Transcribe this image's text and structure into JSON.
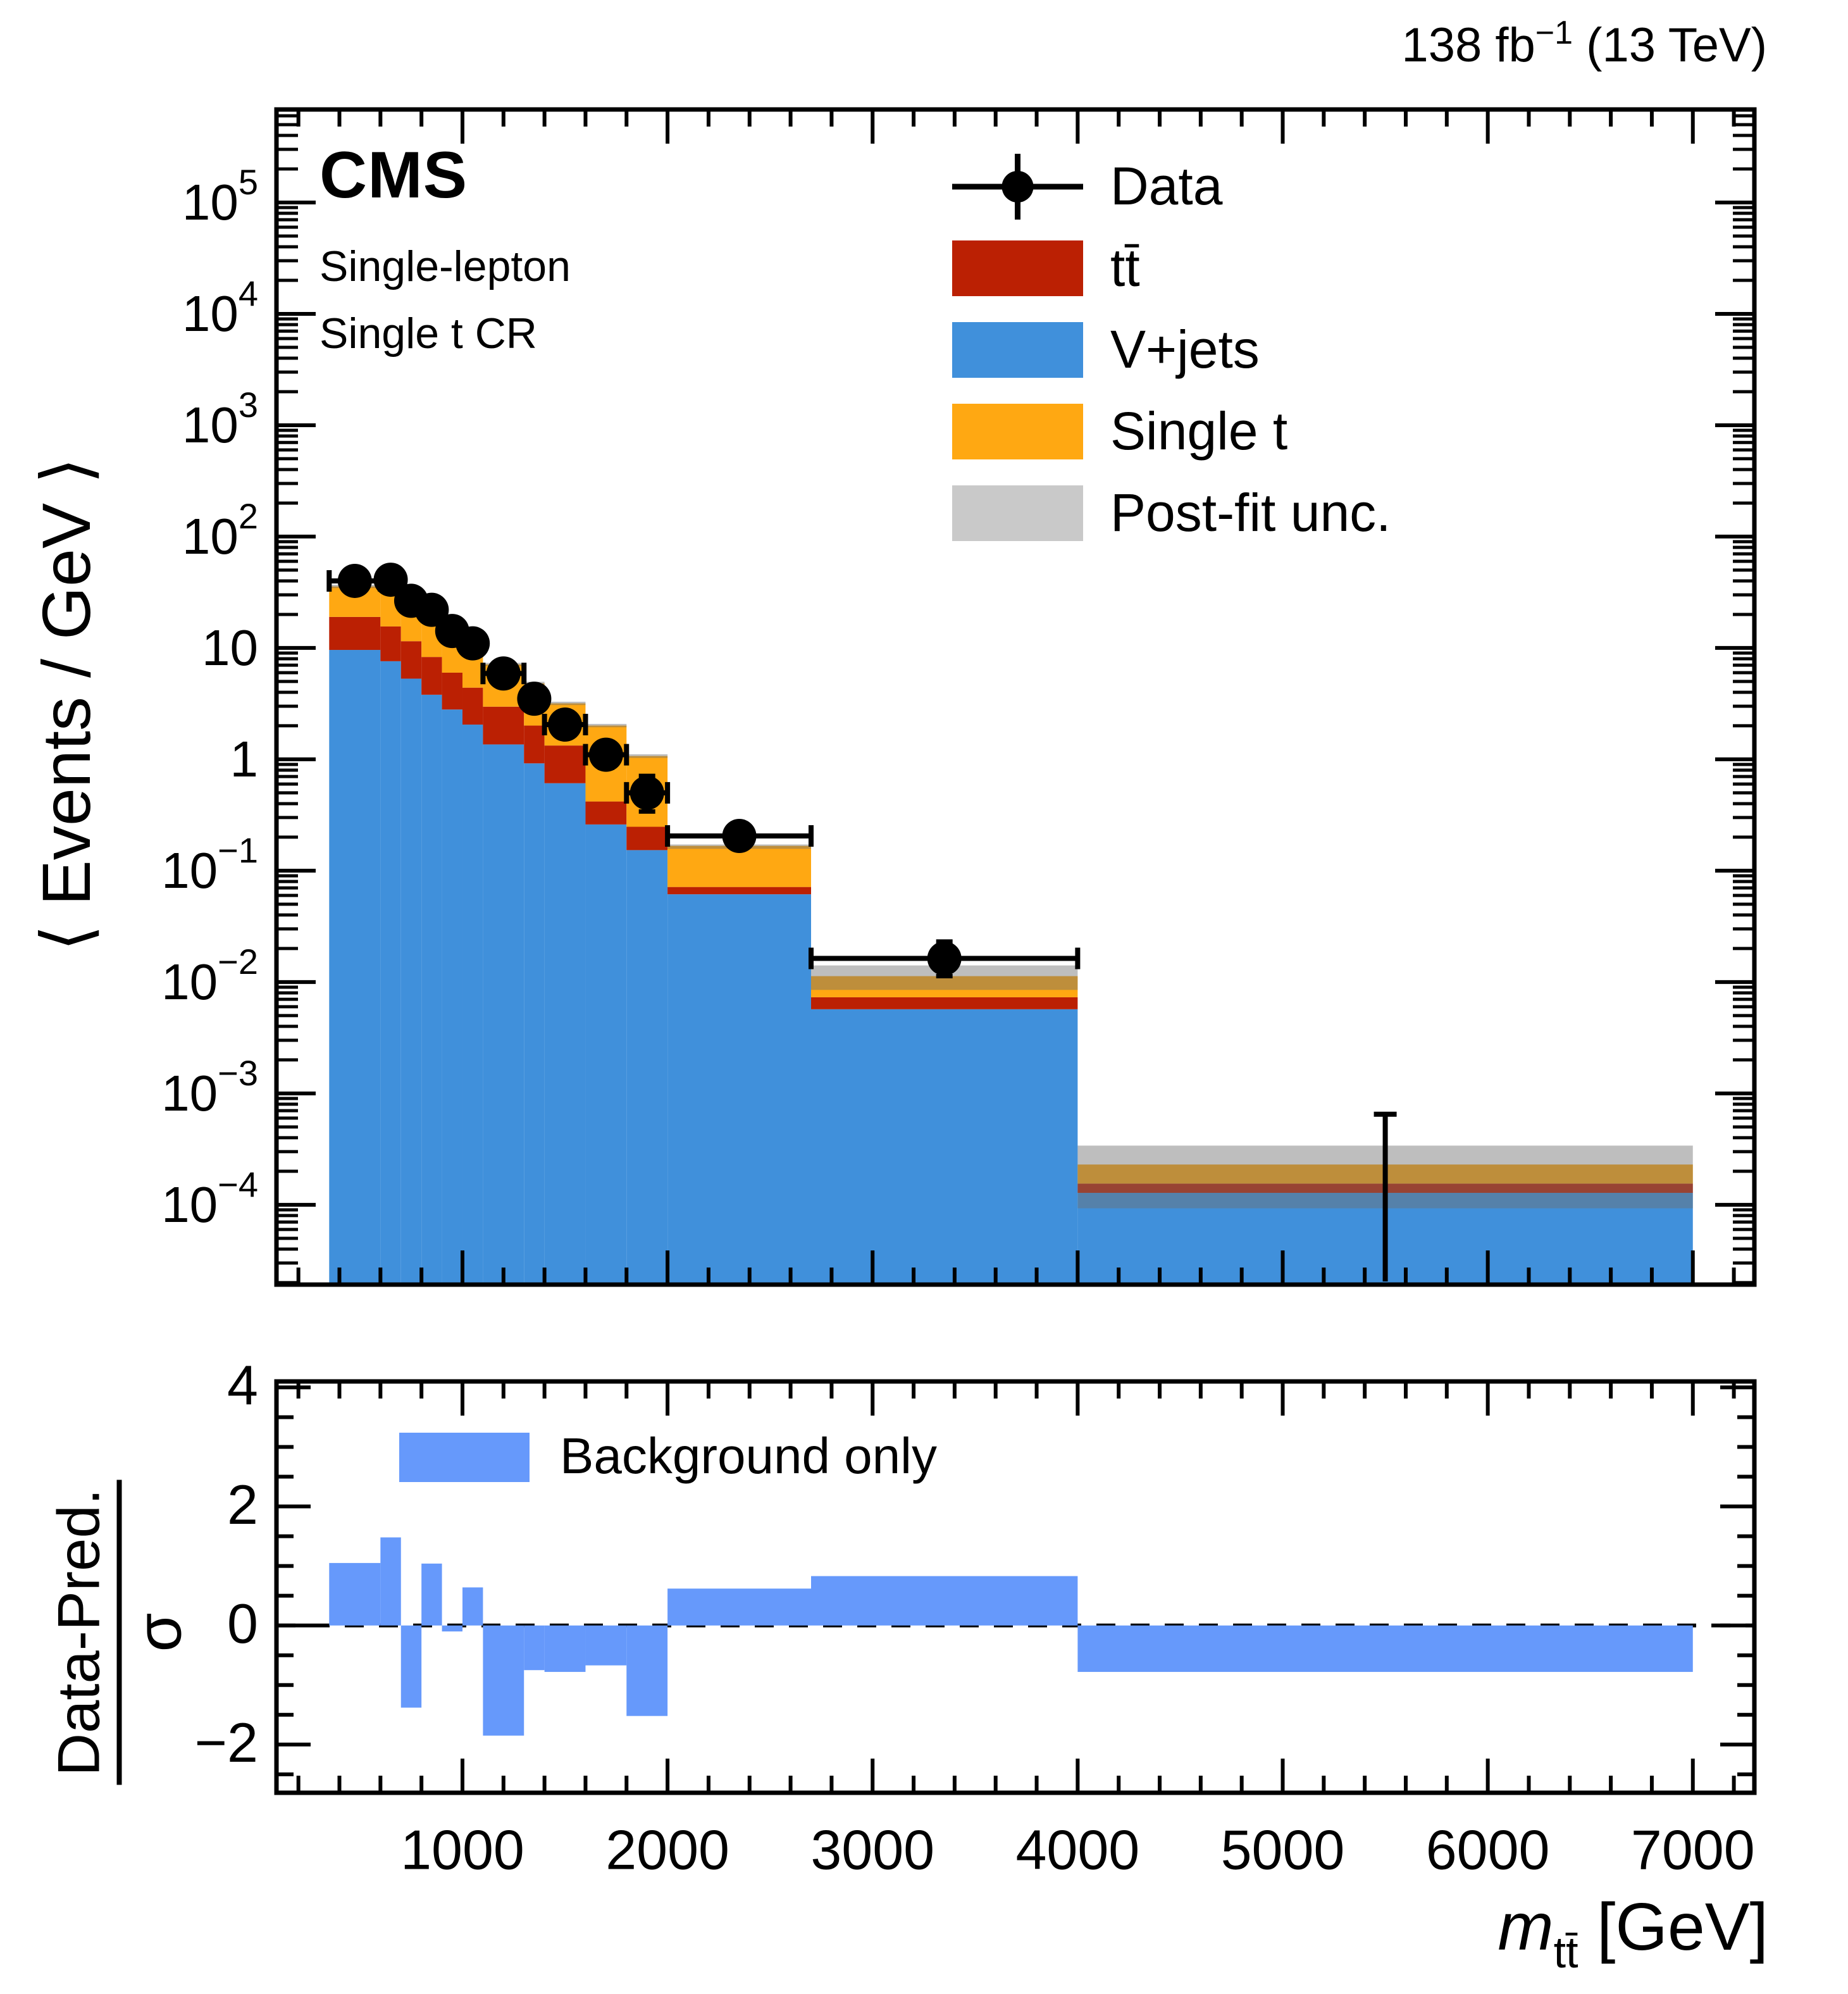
{
  "header": {
    "experiment": "CMS",
    "channel": "Single-lepton",
    "region": "Single t CR",
    "lumi_prefix": "138 fb",
    "lumi_sup": "−1",
    "lumi_suffix": " (13 TeV)"
  },
  "axes": {
    "y_title": "⟨ Events / GeV ⟩",
    "x_title_var": "m",
    "x_title_sub": "tt̄",
    "x_title_unit": " [GeV]",
    "ratio_numerator": "Data-Pred.",
    "ratio_denominator": "σ"
  },
  "legend": {
    "items": [
      {
        "type": "marker",
        "label": "Data",
        "color": "#000000"
      },
      {
        "type": "box",
        "label": "tt̄",
        "color": "#BB2003"
      },
      {
        "type": "box",
        "label": "V+jets",
        "color": "#4090DB"
      },
      {
        "type": "box",
        "label": "Single t",
        "color": "#FFA812"
      },
      {
        "type": "box",
        "label": "Post-fit unc.",
        "color": "#C9C9C9"
      }
    ]
  },
  "ratio_legend": {
    "label": "Background only",
    "color": "#6699FB"
  },
  "chart_data": {
    "type": "bar",
    "subtype": "stacked-histogram-log-y-with-pull-ratio",
    "title": "",
    "xlabel": "m_ttbar [GeV]",
    "ylabel": "< Events / GeV >",
    "xlim": [
      93,
      7300
    ],
    "ylim_log": [
      1.92e-05,
      684000
    ],
    "x_major_ticks": [
      1000,
      2000,
      3000,
      4000,
      5000,
      6000,
      7000
    ],
    "x_minor_step": 200,
    "y_decade_labels": [
      {
        "value": 100000,
        "base": "10",
        "exp": "5"
      },
      {
        "value": 10000,
        "base": "10",
        "exp": "4"
      },
      {
        "value": 1000,
        "base": "10",
        "exp": "3"
      },
      {
        "value": 100,
        "base": "10",
        "exp": "2"
      },
      {
        "value": 10,
        "base": "10",
        "exp": ""
      },
      {
        "value": 1,
        "base": "1",
        "exp": ""
      },
      {
        "value": 0.1,
        "base": "10",
        "exp": "−1"
      },
      {
        "value": 0.01,
        "base": "10",
        "exp": "−2"
      },
      {
        "value": 0.001,
        "base": "10",
        "exp": "−3"
      },
      {
        "value": 0.0001,
        "base": "10",
        "exp": "−4"
      }
    ],
    "bin_edges_gev": [
      350,
      600,
      700,
      800,
      900,
      1000,
      1100,
      1300,
      1400,
      1600,
      1800,
      2000,
      2700,
      4000,
      7000
    ],
    "series": [
      {
        "name": "V+jets",
        "color": "#4090DB",
        "cumulative_top": [
          9.6,
          7.6,
          5.3,
          3.8,
          2.8,
          2.05,
          1.36,
          0.92,
          0.61,
          0.26,
          0.153,
          0.0614,
          0.0057,
          0.000128
        ]
      },
      {
        "name": "ttbar",
        "color": "#BB2003",
        "cumulative_top": [
          19.0,
          15.6,
          11.5,
          8.3,
          6.0,
          4.4,
          2.97,
          2.01,
          1.33,
          0.418,
          0.248,
          0.0714,
          0.0073,
          0.000155
        ]
      },
      {
        "name": "Single t",
        "color": "#FFA812",
        "cumulative_top": [
          35.7,
          37.3,
          28.5,
          20.3,
          14.3,
          10.5,
          7.11,
          4.81,
          3.18,
          2.01,
          1.07,
          0.167,
          0.0113,
          0.00023
        ]
      }
    ],
    "postfit_unc": {
      "color": "#6E6E6E",
      "alpha": 0.45,
      "lo": [
        34.5,
        36.0,
        27.5,
        19.6,
        13.8,
        10.1,
        6.87,
        4.65,
        3.07,
        1.94,
        1.03,
        0.157,
        0.0085,
        9.3e-05
      ],
      "hi": [
        37.0,
        38.6,
        29.5,
        21.0,
        14.8,
        10.9,
        7.35,
        4.97,
        3.29,
        2.08,
        1.11,
        0.172,
        0.0141,
        0.00034
      ]
    },
    "data_points": [
      {
        "x": 475,
        "y": 40,
        "elo": 2.2,
        "ehi": 2.2
      },
      {
        "x": 650,
        "y": 41,
        "elo": 2.4,
        "ehi": 2.4
      },
      {
        "x": 750,
        "y": 26.5,
        "elo": 1.9,
        "ehi": 1.9
      },
      {
        "x": 850,
        "y": 22,
        "elo": 1.7,
        "ehi": 1.7
      },
      {
        "x": 950,
        "y": 14.2,
        "elo": 1.3,
        "ehi": 1.3
      },
      {
        "x": 1050,
        "y": 11.0,
        "elo": 1.1,
        "ehi": 1.1
      },
      {
        "x": 1200,
        "y": 5.9,
        "elo": 0.62,
        "ehi": 0.66
      },
      {
        "x": 1350,
        "y": 3.5,
        "elo": 0.52,
        "ehi": 0.56
      },
      {
        "x": 1500,
        "y": 2.05,
        "elo": 0.36,
        "ehi": 0.4
      },
      {
        "x": 1700,
        "y": 1.1,
        "elo": 0.26,
        "ehi": 0.31
      },
      {
        "x": 1900,
        "y": 0.5,
        "elo": 0.16,
        "ehi": 0.21
      },
      {
        "x": 2350,
        "y": 0.205,
        "elo": 0.038,
        "ehi": 0.046
      },
      {
        "x": 3350,
        "y": 0.0163,
        "elo": 0.005,
        "ehi": 0.0068
      }
    ],
    "empty_bin_errorbar": {
      "x": 5500,
      "y_top": 0.00065,
      "y_bottom": 2.05e-05
    },
    "ratio": {
      "values": [
        1.05,
        1.48,
        -1.38,
        1.04,
        -0.1,
        0.64,
        -1.85,
        -0.75,
        -0.78,
        -0.67,
        -1.52,
        0.62,
        0.83,
        -0.78
      ],
      "ylim": [
        -2.81,
        4.1
      ],
      "yticks": [
        {
          "v": 4,
          "label": "4"
        },
        {
          "v": 2,
          "label": "2"
        },
        {
          "v": 0,
          "label": "0"
        },
        {
          "v": -2,
          "label": "−2"
        }
      ],
      "y_minor_step": 0.5,
      "bar_color": "#6699FB",
      "zero_line": "dashed"
    },
    "legend_position": "upper right",
    "grid": false
  }
}
